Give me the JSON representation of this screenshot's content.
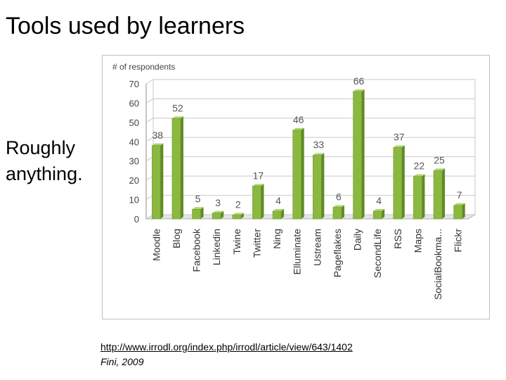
{
  "slide": {
    "title": "Tools used by learners",
    "side_note": "Roughly anything.",
    "source_link": "http://www.irrodl.org/index.php/irrodl/article/view/643/1402",
    "source_cite": "Fini, 2009"
  },
  "chart_data": {
    "type": "bar",
    "title": "",
    "ylabel": "# of respondents",
    "xlabel": "",
    "ylim": [
      0,
      70
    ],
    "yticks": [
      0,
      10,
      20,
      30,
      40,
      50,
      60,
      70
    ],
    "grid": true,
    "bar_color": "#8bb840",
    "categories": [
      "Moodle",
      "Blog",
      "Facebook",
      "Linkedin",
      "Twine",
      "Twitter",
      "Ning",
      "Elluminate",
      "Ustream",
      "Pageflakes",
      "Daily",
      "SecondLife",
      "RSS",
      "Maps",
      "SocialBookma...",
      "Flickr"
    ],
    "values": [
      38,
      52,
      5,
      3,
      2,
      17,
      4,
      46,
      33,
      6,
      66,
      4,
      37,
      22,
      25,
      7
    ]
  }
}
